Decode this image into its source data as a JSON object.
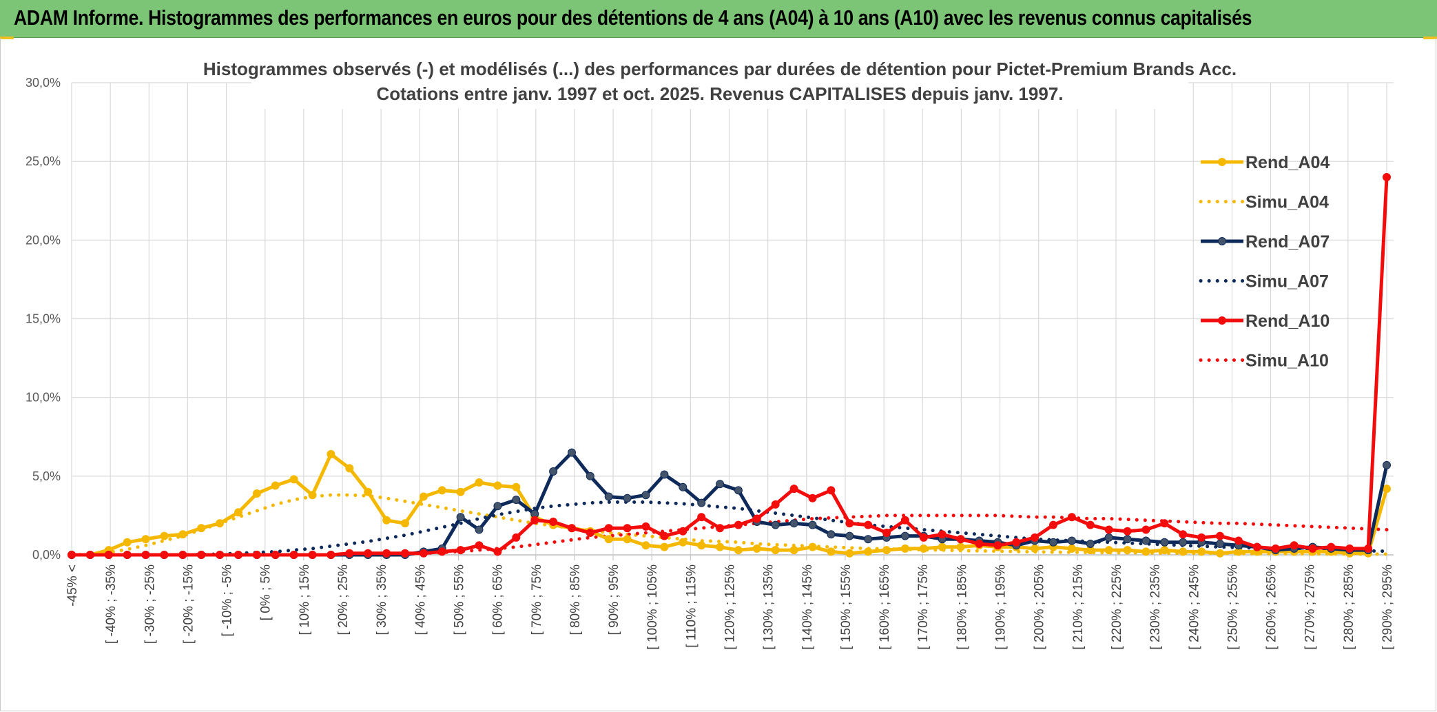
{
  "header": {
    "title": "ADAM Informe. Histogrammes des performances en euros pour des détentions de 4 ans (A04) à 10 ans (A10) avec les revenus connus capitalisés"
  },
  "colors": {
    "header_bg": "#7cc576",
    "rend_a04": "#f5b800",
    "rend_a07": "#0e2a5a",
    "rend_a10": "#f20c0c",
    "grid": "#d9d9d9"
  },
  "chart_data": {
    "type": "line",
    "title": "Histogrammes observés (-) et modélisés (...) des performances par durées de détention pour Pictet-Premium Brands Acc.",
    "subtitle": "Cotations entre janv. 1997 et oct. 2025. Revenus CAPITALISES depuis janv. 1997.",
    "ylim": [
      0,
      30
    ],
    "yticks": [
      "0,0%",
      "5,0%",
      "10,0%",
      "15,0%",
      "20,0%",
      "25,0%",
      "30,0%"
    ],
    "grid": true,
    "legend_position": "right",
    "x_labels": [
      "-45% <",
      "[ -40% ; -35%",
      "[ -30% ; -25%",
      "[ -20% ; -15%",
      "[ -10% ; -5%",
      "[ 0% ; 5%",
      "[ 10% ; 15%",
      "[ 20% ; 25%",
      "[ 30% ; 35%",
      "[ 40% ; 45%",
      "[ 50% ; 55%",
      "[ 60% ; 65%",
      "[ 70% ; 75%",
      "[ 80% ; 85%",
      "[ 90% ; 95%",
      "[ 100% ; 105%",
      "[ 110% ; 115%",
      "[ 120% ; 125%",
      "[ 130% ; 135%",
      "[ 140% ; 145%",
      "[ 150% ; 155%",
      "[ 160% ; 165%",
      "[ 170% ; 175%",
      "[ 180% ; 185%",
      "[ 190% ; 195%",
      "[ 200% ; 205%",
      "[ 210% ; 215%",
      "[ 220% ; 225%",
      "[ 230% ; 235%",
      "[ 240% ; 245%",
      "[ 250% ; 255%",
      "[ 260% ; 265%",
      "[ 270% ; 275%",
      "[ 280% ; 285%",
      "[ 290% ; 295%"
    ],
    "series": [
      {
        "name": "Rend_A04",
        "style": "solid",
        "color": "#f5b800",
        "values": [
          0,
          0,
          0.3,
          0.8,
          1.0,
          1.2,
          1.3,
          1.7,
          2.0,
          2.7,
          3.9,
          4.4,
          4.8,
          3.8,
          6.4,
          5.5,
          4.0,
          2.2,
          2.0,
          3.7,
          4.1,
          4.0,
          4.6,
          4.4,
          4.3,
          2.4,
          1.9,
          1.7,
          1.5,
          1.0,
          1.0,
          0.6,
          0.5,
          0.8,
          0.6,
          0.5,
          0.3,
          0.4,
          0.3,
          0.3,
          0.5,
          0.2,
          0.1,
          0.2,
          0.3,
          0.4,
          0.4,
          0.5,
          0.5,
          0.6,
          0.5,
          0.5,
          0.4,
          0.5,
          0.4,
          0.3,
          0.3,
          0.3,
          0.2,
          0.3,
          0.2,
          0.2,
          0.1,
          0.2,
          0.2,
          0.2,
          0.2,
          0.2,
          0.2,
          0.1,
          0.1,
          4.2
        ]
      },
      {
        "name": "Simu_A04",
        "style": "dotted",
        "color": "#f5b800",
        "values": [
          0,
          0.05,
          0.15,
          0.35,
          0.6,
          0.9,
          1.2,
          1.6,
          2.0,
          2.4,
          2.8,
          3.2,
          3.5,
          3.7,
          3.8,
          3.8,
          3.75,
          3.6,
          3.4,
          3.2,
          3.0,
          2.8,
          2.6,
          2.4,
          2.2,
          2.0,
          1.85,
          1.7,
          1.55,
          1.4,
          1.3,
          1.2,
          1.1,
          1.0,
          0.9,
          0.85,
          0.8,
          0.7,
          0.65,
          0.6,
          0.55,
          0.5,
          0.45,
          0.4,
          0.38,
          0.35,
          0.32,
          0.3,
          0.27,
          0.25,
          0.23,
          0.21,
          0.19,
          0.17,
          0.16,
          0.15,
          0.14,
          0.13,
          0.12,
          0.11,
          0.1,
          0.1,
          0.09,
          0.08,
          0.08,
          0.07,
          0.07,
          0.06,
          0.06,
          0.05,
          0.05,
          0.05
        ]
      },
      {
        "name": "Rend_A07",
        "style": "solid",
        "color": "#0e2a5a",
        "values": [
          0,
          0,
          0,
          0,
          0,
          0,
          0,
          0,
          0,
          0,
          0,
          0,
          0,
          0,
          0,
          0,
          0,
          0,
          0,
          0.2,
          0.4,
          2.4,
          1.6,
          3.1,
          3.5,
          2.6,
          5.3,
          6.5,
          5.0,
          3.7,
          3.6,
          3.8,
          5.1,
          4.3,
          3.3,
          4.5,
          4.1,
          2.1,
          1.9,
          2.0,
          1.9,
          1.3,
          1.2,
          1.0,
          1.1,
          1.2,
          1.2,
          1.0,
          1.0,
          0.9,
          0.8,
          0.6,
          0.9,
          0.8,
          0.9,
          0.7,
          1.1,
          1.0,
          0.9,
          0.8,
          0.8,
          0.8,
          0.7,
          0.6,
          0.5,
          0.3,
          0.4,
          0.5,
          0.4,
          0.3,
          0.3,
          5.7
        ]
      },
      {
        "name": "Simu_A07",
        "style": "dotted",
        "color": "#0e2a5a",
        "values": [
          0,
          0,
          0,
          0,
          0,
          0,
          0,
          0.02,
          0.05,
          0.1,
          0.15,
          0.2,
          0.3,
          0.4,
          0.55,
          0.7,
          0.85,
          1.05,
          1.25,
          1.5,
          1.75,
          2.0,
          2.3,
          2.55,
          2.75,
          2.95,
          3.1,
          3.2,
          3.3,
          3.35,
          3.35,
          3.35,
          3.3,
          3.25,
          3.15,
          3.05,
          2.95,
          2.8,
          2.65,
          2.5,
          2.35,
          2.2,
          2.05,
          1.9,
          1.8,
          1.7,
          1.6,
          1.5,
          1.4,
          1.3,
          1.2,
          1.1,
          1.0,
          0.95,
          0.9,
          0.85,
          0.8,
          0.75,
          0.7,
          0.65,
          0.6,
          0.55,
          0.5,
          0.47,
          0.43,
          0.4,
          0.37,
          0.34,
          0.31,
          0.28,
          0.25,
          0.23
        ]
      },
      {
        "name": "Rend_A10",
        "style": "solid",
        "color": "#f20c0c",
        "values": [
          0,
          0,
          0,
          0,
          0,
          0,
          0,
          0,
          0,
          0,
          0,
          0,
          0,
          0,
          0,
          0.1,
          0.1,
          0.1,
          0.1,
          0.1,
          0.2,
          0.3,
          0.6,
          0.2,
          1.1,
          2.2,
          2.1,
          1.7,
          1.4,
          1.7,
          1.7,
          1.8,
          1.2,
          1.5,
          2.4,
          1.7,
          1.9,
          2.3,
          3.2,
          4.2,
          3.6,
          4.1,
          2.0,
          1.9,
          1.4,
          2.2,
          1.1,
          1.3,
          1.0,
          0.7,
          0.6,
          0.8,
          1.1,
          1.9,
          2.4,
          1.9,
          1.6,
          1.5,
          1.6,
          2.0,
          1.3,
          1.1,
          1.2,
          0.9,
          0.5,
          0.4,
          0.6,
          0.4,
          0.5,
          0.4,
          0.4,
          24.0
        ]
      },
      {
        "name": "Simu_A10",
        "style": "dotted",
        "color": "#f20c0c",
        "values": [
          0,
          0,
          0,
          0,
          0,
          0,
          0,
          0,
          0,
          0,
          0,
          0,
          0,
          0,
          0,
          0,
          0,
          0.02,
          0.05,
          0.1,
          0.15,
          0.22,
          0.3,
          0.4,
          0.5,
          0.65,
          0.8,
          0.95,
          1.1,
          1.2,
          1.3,
          1.4,
          1.5,
          1.6,
          1.7,
          1.8,
          1.9,
          2.0,
          2.1,
          2.2,
          2.3,
          2.35,
          2.4,
          2.45,
          2.5,
          2.5,
          2.5,
          2.5,
          2.5,
          2.5,
          2.5,
          2.45,
          2.4,
          2.4,
          2.35,
          2.3,
          2.3,
          2.25,
          2.2,
          2.15,
          2.1,
          2.05,
          2.0,
          2.0,
          1.95,
          1.9,
          1.85,
          1.8,
          1.75,
          1.7,
          1.65,
          1.6
        ]
      }
    ]
  }
}
